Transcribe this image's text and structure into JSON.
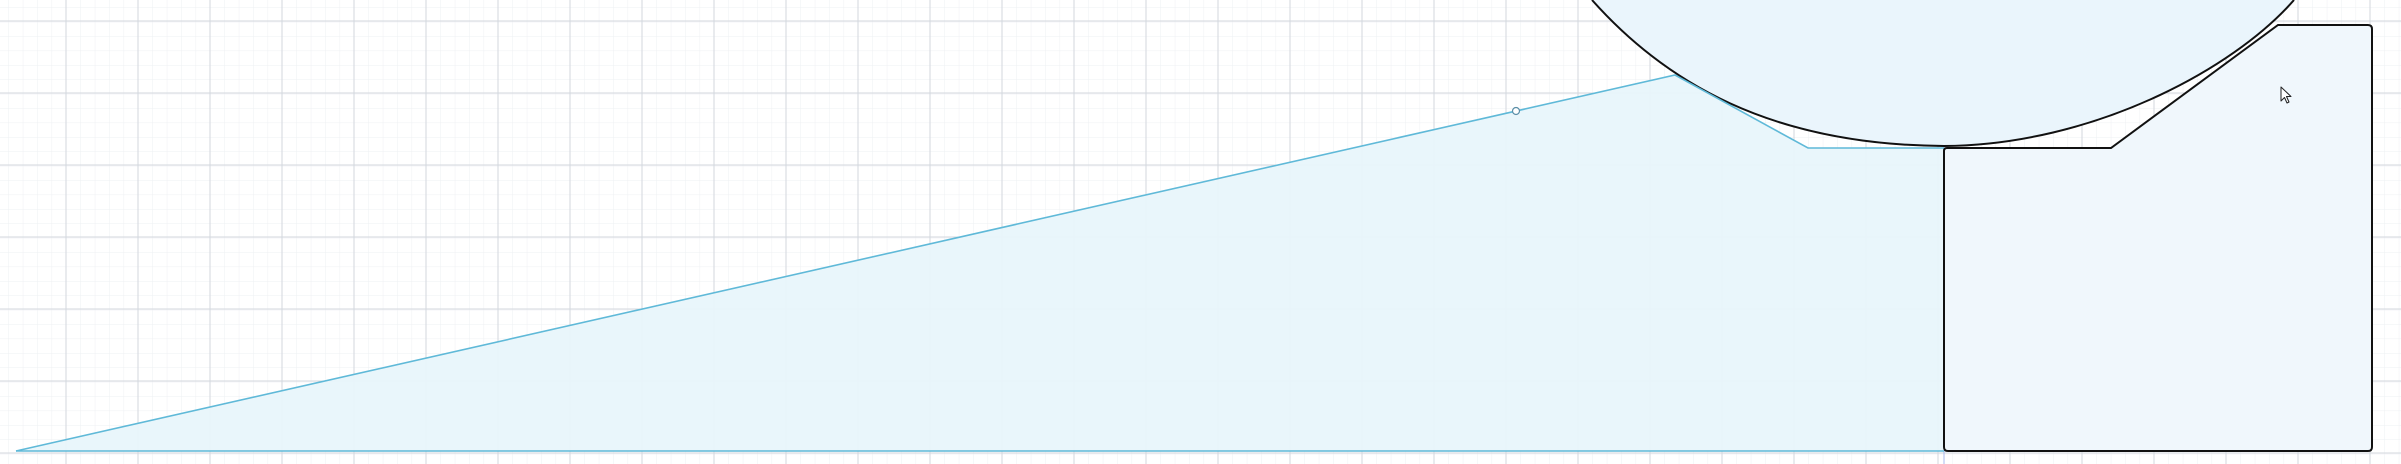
{
  "canvas": {
    "background": "#ffffff",
    "grid_minor_color": "#eef0f3",
    "grid_major_color": "#d3d7de",
    "axis_color": "#a9b9ee"
  },
  "shapes": {
    "selected_profile": {
      "stroke": "#5fb9d8",
      "fill": "#e8f5fb",
      "state": "selected"
    },
    "solid_profile": {
      "stroke": "#111111",
      "fill": "#f0f7fc"
    },
    "circle_profile": {
      "stroke": "#111111",
      "fill": "#eaf5fc"
    },
    "vertex_handle": {
      "stroke": "#5b8fa8",
      "fill": "#ffffff"
    }
  },
  "cursor": {
    "icon": "arrow-pointer-icon"
  }
}
